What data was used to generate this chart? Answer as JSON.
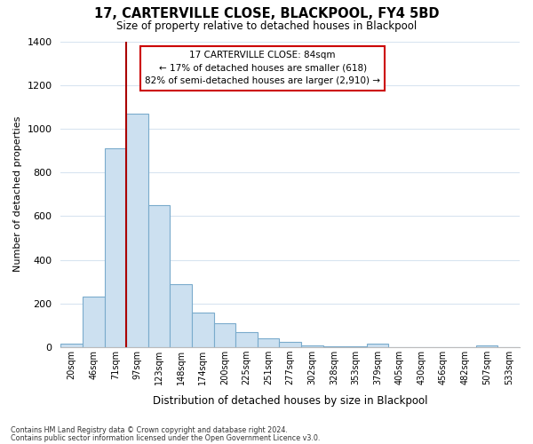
{
  "title": "17, CARTERVILLE CLOSE, BLACKPOOL, FY4 5BD",
  "subtitle": "Size of property relative to detached houses in Blackpool",
  "xlabel": "Distribution of detached houses by size in Blackpool",
  "ylabel": "Number of detached properties",
  "bar_labels": [
    "20sqm",
    "46sqm",
    "71sqm",
    "97sqm",
    "123sqm",
    "148sqm",
    "174sqm",
    "200sqm",
    "225sqm",
    "251sqm",
    "277sqm",
    "302sqm",
    "328sqm",
    "353sqm",
    "379sqm",
    "405sqm",
    "430sqm",
    "456sqm",
    "482sqm",
    "507sqm",
    "533sqm"
  ],
  "bar_values": [
    15,
    230,
    910,
    1070,
    650,
    290,
    160,
    110,
    70,
    40,
    25,
    10,
    5,
    5,
    15,
    0,
    0,
    0,
    0,
    10,
    0
  ],
  "bar_color": "#cce0f0",
  "bar_edge_color": "#7aabcc",
  "vline_color": "#aa0000",
  "annotation_title": "17 CARTERVILLE CLOSE: 84sqm",
  "annotation_line1": "← 17% of detached houses are smaller (618)",
  "annotation_line2": "82% of semi-detached houses are larger (2,910) →",
  "annotation_box_color": "#ffffff",
  "annotation_box_edge": "#cc0000",
  "ylim": [
    0,
    1400
  ],
  "yticks": [
    0,
    200,
    400,
    600,
    800,
    1000,
    1200,
    1400
  ],
  "footnote1": "Contains HM Land Registry data © Crown copyright and database right 2024.",
  "footnote2": "Contains public sector information licensed under the Open Government Licence v3.0.",
  "bg_color": "#ffffff",
  "grid_color": "#d8e4f0"
}
